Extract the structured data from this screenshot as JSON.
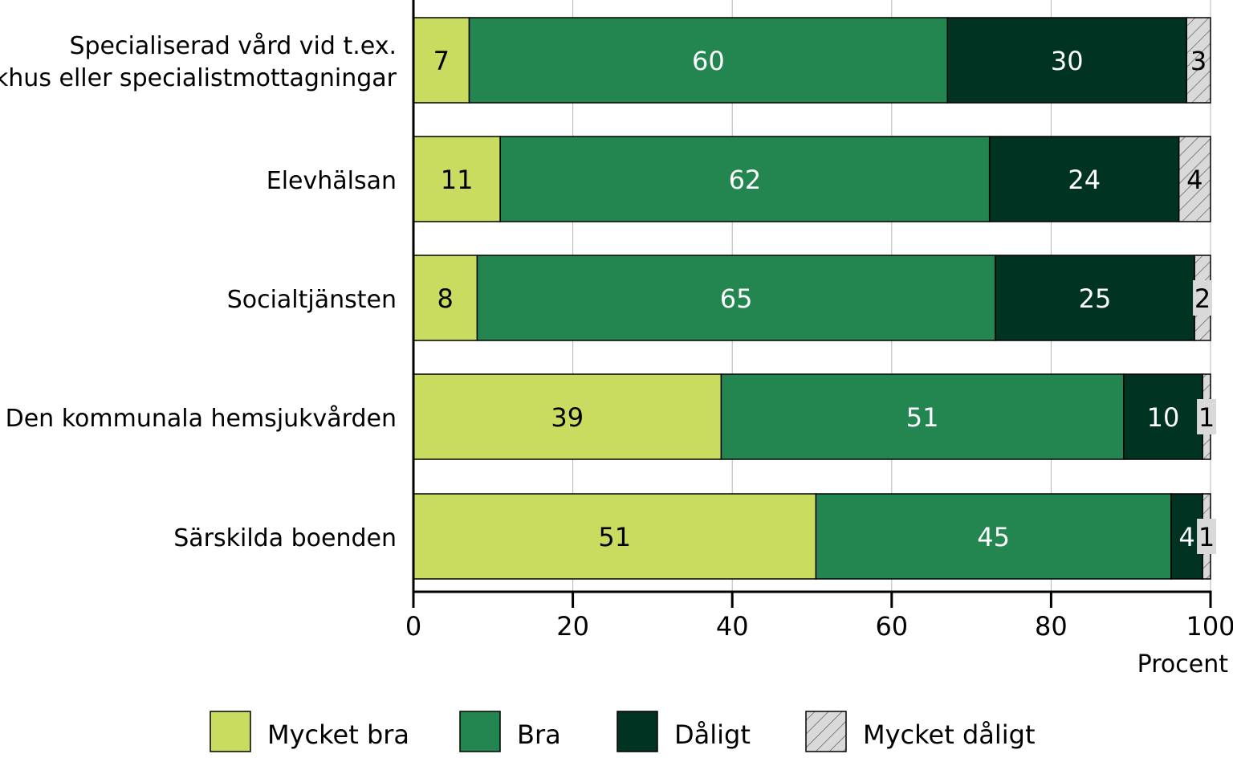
{
  "chart_data": {
    "type": "bar",
    "orientation": "horizontal",
    "stacked": true,
    "categories": [
      [
        "Specialiserad vård vid t.ex.",
        "sjukhus eller specialistmottagningar"
      ],
      [
        "Elevhälsan"
      ],
      [
        "Socialtjänsten"
      ],
      [
        "Den kommunala hemsjukvården"
      ],
      [
        "Särskilda boenden"
      ]
    ],
    "series": [
      {
        "name": "Mycket bra",
        "color": "#c9dc5f",
        "label_color": "#000000",
        "values": [
          7,
          11,
          8,
          39,
          51
        ]
      },
      {
        "name": "Bra",
        "color": "#238650",
        "label_color": "#ffffff",
        "values": [
          60,
          62,
          65,
          51,
          45
        ]
      },
      {
        "name": "Dåligt",
        "color": "#003322",
        "label_color": "#ffffff",
        "values": [
          30,
          24,
          25,
          10,
          4
        ]
      },
      {
        "name": "Mycket dåligt",
        "color": "#d9d9d9",
        "hatched": true,
        "label_color": "#000000",
        "values": [
          3,
          4,
          2,
          1,
          1
        ]
      }
    ],
    "xlabel": "Procent",
    "xlim": [
      0,
      100
    ],
    "xticks": [
      0,
      20,
      40,
      60,
      80,
      100
    ],
    "grid": "vertical",
    "legend": "bottom"
  }
}
